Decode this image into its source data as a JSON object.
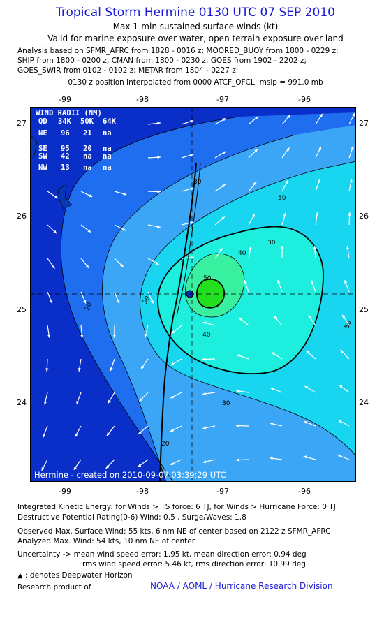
{
  "header": {
    "title": "Tropical Storm Hermine 0130 UTC 07 SEP 2010",
    "subtitle": "Max 1-min sustained surface winds (kt)",
    "validity": "Valid for marine exposure over water, open terrain exposure over land",
    "analysis_lines": [
      "Analysis based on SFMR_AFRC from 1828 - 0016 z; MOORED_BUOY from 1800 - 0229 z;",
      "SHIP from 1800 - 0200 z; CMAN from 1800 - 0230 z; GOES from 1902 - 2202 z;",
      "GOES_SWIR from 0102 - 0102 z; METAR from 1804 - 0227 z;"
    ],
    "position_note": "0130 z position interpolated from 0000 ATCF_OFCL; mslp = 991.0 mb"
  },
  "map": {
    "lon_ticks": [
      "-99",
      "-98",
      "-97",
      "-96"
    ],
    "lat_ticks": [
      "27",
      "26",
      "25",
      "24"
    ],
    "contour_labels": [
      "20",
      "30",
      "40",
      "50",
      "30",
      "40",
      "50",
      "30",
      "50",
      "20",
      "30"
    ],
    "creation_note": "Hermine - created on 2010-09-07 03:39:29 UTC",
    "wind_radii": {
      "title": "WIND RADII (NM)",
      "header": [
        "QD",
        "34K",
        "50K",
        "64K"
      ],
      "rows": [
        [
          "NE",
          "96",
          "21",
          "na"
        ],
        [
          "SE",
          "95",
          "20",
          "na"
        ],
        [
          "SW",
          "42",
          "na",
          "na"
        ],
        [
          "NW",
          "13",
          "na",
          "na"
        ]
      ]
    },
    "colors": {
      "deep_blue": "#0a2ec8",
      "mid_blue": "#1f6ef0",
      "light_blue": "#3aa6f5",
      "cyan": "#19d6f0",
      "aqua": "#1eeede",
      "green": "#39f0a0",
      "bright_green": "#22e020",
      "land": "#0838b8"
    }
  },
  "footer": {
    "ike": "Integrated Kinetic Energy:  for Winds > TS force: 6 TJ,  for Winds > Hurricane Force: 0 TJ",
    "dpr": "Destructive Potential Rating(0-6)   Wind: 0.5 , Surge/Waves: 1.8",
    "observed": "Observed Max. Surface Wind: 55 kts, 6 nm NE of center based on 2122 z SFMR_AFRC",
    "analyzed": "Analyzed Max. Wind: 54 kts, 10 nm NE of center",
    "uncertainty1": "Uncertainty -> mean wind speed error: 1.95 kt,   mean direction error: 0.94 deg",
    "uncertainty2": "rms wind speed error: 5.46 kt,   rms direction error: 10.99 deg",
    "legend_deepwater": ": denotes Deepwater Horizon",
    "research": "Research product of",
    "credit": "NOAA / AOML / Hurricane Research Division"
  }
}
